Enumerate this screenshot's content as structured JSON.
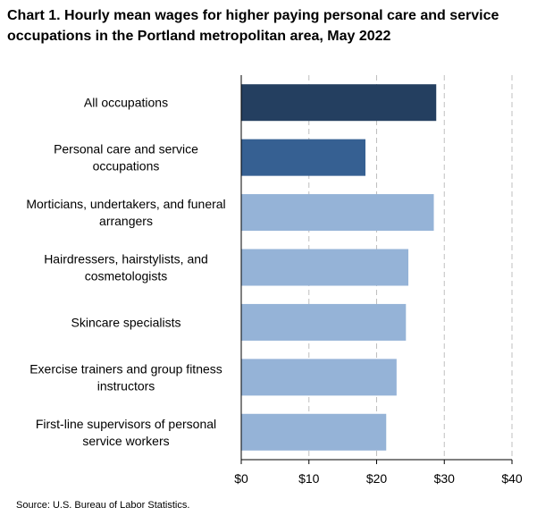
{
  "chart_data": {
    "type": "bar",
    "orientation": "horizontal",
    "title": "Chart 1. Hourly mean wages for higher paying personal care and service occupations in the Portland metropolitan area, May 2022",
    "categories": [
      "All occupations",
      "Personal care and service occupations",
      "Morticians, undertakers, and funeral arrangers",
      "Hairdressers, hairstylists, and cosmetologists",
      "Skincare specialists",
      "Exercise trainers and group fitness instructors",
      "First-line supervisors of personal service workers"
    ],
    "category_lines": [
      [
        "All occupations"
      ],
      [
        "Personal care and service",
        "occupations"
      ],
      [
        "Morticians, undertakers, and funeral",
        "arrangers"
      ],
      [
        "Hairdressers, hairstylists, and",
        "cosmetologists"
      ],
      [
        "Skincare specialists"
      ],
      [
        "Exercise trainers and group fitness",
        "instructors"
      ],
      [
        "First-line supervisors of personal",
        "service workers"
      ]
    ],
    "values": [
      28.81,
      18.35,
      28.45,
      24.69,
      24.33,
      22.95,
      21.42
    ],
    "bar_colors": [
      "#243f60",
      "#366092",
      "#95b3d7",
      "#95b3d7",
      "#95b3d7",
      "#95b3d7",
      "#95b3d7"
    ],
    "xlim": [
      0,
      40
    ],
    "xticks": [
      0,
      10,
      20,
      30,
      40
    ],
    "xtick_labels": [
      "$0",
      "$10",
      "$20",
      "$30",
      "$40"
    ],
    "xlabel": "",
    "ylabel": "",
    "grid": "vertical dashed",
    "legend": "none"
  },
  "source": "Source: U.S. Bureau of Labor Statistics.",
  "colors": {
    "grid": "#bfbfbf",
    "axis": "#000000"
  }
}
